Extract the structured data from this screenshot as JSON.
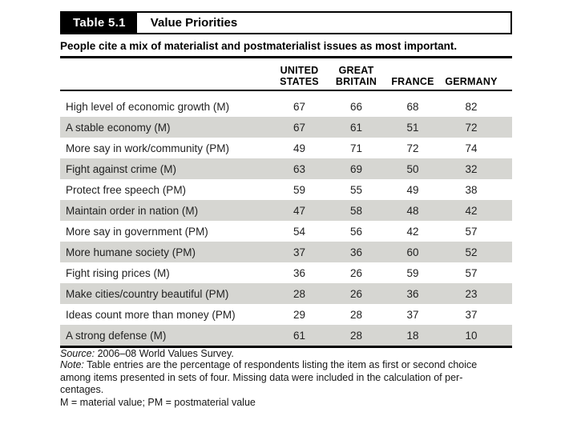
{
  "table": {
    "label": "Table 5.1",
    "title": "Value Priorities",
    "subtitle": "People cite a mix of materialist and postmaterialist issues as most important.",
    "headers": [
      {
        "line1": "UNITED",
        "line2": "STATES"
      },
      {
        "line1": "GREAT",
        "line2": "BRITAIN"
      },
      {
        "line1": "",
        "line2": "FRANCE"
      },
      {
        "line1": "",
        "line2": "GERMANY"
      }
    ],
    "rows": [
      {
        "label": "High level of economic growth (M)",
        "values": [
          67,
          66,
          68,
          82
        ]
      },
      {
        "label": "A stable economy (M)",
        "values": [
          67,
          61,
          51,
          72
        ]
      },
      {
        "label": "More say in work/community (PM)",
        "values": [
          49,
          71,
          72,
          74
        ]
      },
      {
        "label": "Fight against crime (M)",
        "values": [
          63,
          69,
          50,
          32
        ]
      },
      {
        "label": "Protect free speech (PM)",
        "values": [
          59,
          55,
          49,
          38
        ]
      },
      {
        "label": "Maintain order in nation (M)",
        "values": [
          47,
          58,
          48,
          42
        ]
      },
      {
        "label": "More say in government (PM)",
        "values": [
          54,
          56,
          42,
          57
        ]
      },
      {
        "label": "More humane society (PM)",
        "values": [
          37,
          36,
          60,
          52
        ]
      },
      {
        "label": "Fight rising prices (M)",
        "values": [
          36,
          26,
          59,
          57
        ]
      },
      {
        "label": "Make cities/country beautiful (PM)",
        "values": [
          28,
          26,
          36,
          23
        ]
      },
      {
        "label": "Ideas count more than money (PM)",
        "values": [
          29,
          28,
          37,
          37
        ]
      },
      {
        "label": "A strong defense (M)",
        "values": [
          61,
          28,
          18,
          10
        ]
      }
    ]
  },
  "footer": {
    "source_label": "Source:",
    "source_text": " 2006–08 World Values Survey.",
    "note_label": "Note:",
    "note_lines": [
      " Table entries are the percentage of respondents listing the item as first or second choice",
      "among items presented in sets of four. Missing data were included in the calculation of per-",
      "centages."
    ],
    "legend": "M = material value; PM = postmaterial value"
  },
  "colors": {
    "row_shade": "#d6d6d2",
    "ink": "#000000",
    "title_label_bg": "#000000",
    "title_label_text": "#ffffff"
  }
}
